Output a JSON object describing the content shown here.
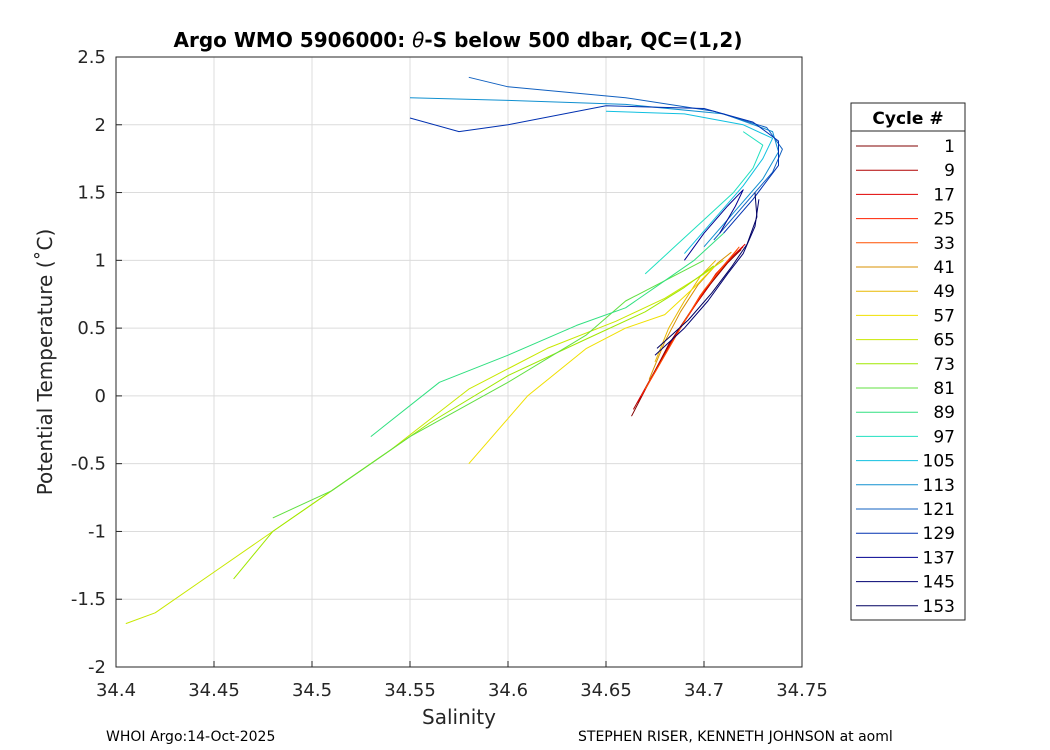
{
  "chart_data": {
    "type": "line",
    "title_prefix": "Argo WMO 5906000: ",
    "title_theta": "θ",
    "title_suffix": "-S below 500 dbar,  QC=(1,2)",
    "xlabel": "Salinity",
    "ylabel": "Potential Temperature (˚C)",
    "xlim": [
      34.4,
      34.75
    ],
    "ylim": [
      -2,
      2.5
    ],
    "xticks": [
      "34.4",
      "34.45",
      "34.5",
      "34.55",
      "34.6",
      "34.65",
      "34.7",
      "34.75"
    ],
    "yticks": [
      "-2",
      "-1.5",
      "-1",
      "-0.5",
      "0",
      "0.5",
      "1",
      "1.5",
      "2",
      "2.5"
    ],
    "grid": true,
    "legend": {
      "title": "Cycle #",
      "placement": "right",
      "entries": [
        "1",
        "9",
        "17",
        "25",
        "33",
        "41",
        "49",
        "57",
        "65",
        "73",
        "81",
        "89",
        "97",
        "105",
        "113",
        "121",
        "129",
        "137",
        "145",
        "153"
      ],
      "colors": [
        "#800000",
        "#b00000",
        "#e00000",
        "#ff2000",
        "#ff5000",
        "#d89000",
        "#e8b800",
        "#f0e000",
        "#c8e800",
        "#a0e800",
        "#60e040",
        "#30e080",
        "#20e0c0",
        "#10c0e0",
        "#1090d0",
        "#1060c0",
        "#0030b0",
        "#000090",
        "#000070",
        "#000060"
      ]
    },
    "series": [
      {
        "values": [
          [
            34.663,
            -0.15
          ],
          [
            34.672,
            0.1
          ],
          [
            34.682,
            0.38
          ],
          [
            34.693,
            0.62
          ],
          [
            34.703,
            0.82
          ],
          [
            34.712,
            0.98
          ],
          [
            34.719,
            1.08
          ]
        ]
      },
      {
        "values": [
          [
            34.664,
            -0.1
          ],
          [
            34.674,
            0.16
          ],
          [
            34.684,
            0.42
          ],
          [
            34.695,
            0.66
          ],
          [
            34.705,
            0.86
          ],
          [
            34.714,
            1.02
          ],
          [
            34.72,
            1.1
          ]
        ]
      },
      {
        "values": [
          [
            34.666,
            -0.05
          ],
          [
            34.676,
            0.2
          ],
          [
            34.686,
            0.46
          ],
          [
            34.697,
            0.7
          ],
          [
            34.706,
            0.9
          ],
          [
            34.716,
            1.05
          ],
          [
            34.721,
            1.12
          ]
        ]
      },
      {
        "values": [
          [
            34.668,
            0.0
          ],
          [
            34.678,
            0.25
          ],
          [
            34.688,
            0.5
          ],
          [
            34.698,
            0.74
          ],
          [
            34.708,
            0.93
          ],
          [
            34.717,
            1.08
          ]
        ]
      },
      {
        "values": [
          [
            34.67,
            0.05
          ],
          [
            34.68,
            0.3
          ],
          [
            34.69,
            0.55
          ],
          [
            34.7,
            0.78
          ],
          [
            34.71,
            0.96
          ],
          [
            34.718,
            1.1
          ]
        ]
      },
      {
        "values": [
          [
            34.672,
            0.12
          ],
          [
            34.68,
            0.4
          ],
          [
            34.688,
            0.62
          ],
          [
            34.697,
            0.82
          ],
          [
            34.707,
            0.98
          ],
          [
            34.714,
            1.06
          ]
        ]
      },
      {
        "values": [
          [
            34.675,
            0.25
          ],
          [
            34.682,
            0.5
          ],
          [
            34.69,
            0.7
          ],
          [
            34.698,
            0.88
          ],
          [
            34.706,
            1.0
          ]
        ]
      },
      {
        "values": [
          [
            34.58,
            -0.5
          ],
          [
            34.61,
            0.0
          ],
          [
            34.64,
            0.35
          ],
          [
            34.66,
            0.5
          ],
          [
            34.68,
            0.6
          ],
          [
            34.695,
            0.8
          ],
          [
            34.705,
            0.95
          ]
        ]
      },
      {
        "values": [
          [
            34.405,
            -1.68
          ],
          [
            34.42,
            -1.6
          ],
          [
            34.45,
            -1.3
          ],
          [
            34.49,
            -0.9
          ],
          [
            34.54,
            -0.4
          ],
          [
            34.58,
            0.05
          ],
          [
            34.62,
            0.35
          ],
          [
            34.655,
            0.55
          ],
          [
            34.68,
            0.72
          ],
          [
            34.7,
            0.9
          ],
          [
            34.71,
            1.0
          ]
        ]
      },
      {
        "values": [
          [
            34.46,
            -1.35
          ],
          [
            34.48,
            -1.0
          ],
          [
            34.52,
            -0.6
          ],
          [
            34.56,
            -0.2
          ],
          [
            34.6,
            0.15
          ],
          [
            34.64,
            0.42
          ],
          [
            34.67,
            0.62
          ],
          [
            34.69,
            0.8
          ],
          [
            34.705,
            0.96
          ]
        ]
      },
      {
        "values": [
          [
            34.48,
            -0.9
          ],
          [
            34.51,
            -0.7
          ],
          [
            34.55,
            -0.3
          ],
          [
            34.6,
            0.1
          ],
          [
            34.64,
            0.45
          ],
          [
            34.66,
            0.7
          ],
          [
            34.68,
            0.85
          ],
          [
            34.7,
            1.0
          ]
        ]
      },
      {
        "values": [
          [
            34.53,
            -0.3
          ],
          [
            34.565,
            0.1
          ],
          [
            34.6,
            0.3
          ],
          [
            34.635,
            0.52
          ],
          [
            34.66,
            0.65
          ],
          [
            34.68,
            0.85
          ],
          [
            34.695,
            1.0
          ],
          [
            34.71,
            1.2
          ]
        ]
      },
      {
        "values": [
          [
            34.67,
            0.9
          ],
          [
            34.685,
            1.1
          ],
          [
            34.7,
            1.3
          ],
          [
            34.715,
            1.5
          ],
          [
            34.725,
            1.68
          ],
          [
            34.73,
            1.85
          ],
          [
            34.72,
            1.95
          ]
        ]
      },
      {
        "values": [
          [
            34.69,
            1.05
          ],
          [
            34.705,
            1.3
          ],
          [
            34.72,
            1.55
          ],
          [
            34.73,
            1.75
          ],
          [
            34.735,
            1.9
          ],
          [
            34.72,
            2.0
          ],
          [
            34.69,
            2.08
          ],
          [
            34.65,
            2.1
          ]
        ]
      },
      {
        "values": [
          [
            34.7,
            1.1
          ],
          [
            34.715,
            1.35
          ],
          [
            34.73,
            1.6
          ],
          [
            34.738,
            1.8
          ],
          [
            34.735,
            1.95
          ],
          [
            34.71,
            2.08
          ],
          [
            34.66,
            2.15
          ],
          [
            34.6,
            2.18
          ],
          [
            34.55,
            2.2
          ]
        ]
      },
      {
        "values": [
          [
            34.705,
            1.15
          ],
          [
            34.72,
            1.4
          ],
          [
            34.735,
            1.65
          ],
          [
            34.74,
            1.82
          ],
          [
            34.732,
            1.98
          ],
          [
            34.705,
            2.1
          ],
          [
            34.66,
            2.2
          ],
          [
            34.6,
            2.28
          ],
          [
            34.58,
            2.35
          ]
        ]
      },
      {
        "values": [
          [
            34.71,
            1.2
          ],
          [
            34.725,
            1.45
          ],
          [
            34.738,
            1.7
          ],
          [
            34.738,
            1.88
          ],
          [
            34.725,
            2.02
          ],
          [
            34.7,
            2.12
          ],
          [
            34.65,
            2.14
          ],
          [
            34.6,
            2.0
          ],
          [
            34.575,
            1.95
          ],
          [
            34.55,
            2.05
          ]
        ]
      },
      {
        "values": [
          [
            34.69,
            1.0
          ],
          [
            34.7,
            1.2
          ],
          [
            34.712,
            1.4
          ],
          [
            34.72,
            1.52
          ],
          [
            34.716,
            1.4
          ],
          [
            34.708,
            1.2
          ]
        ]
      },
      {
        "values": [
          [
            34.675,
            0.3
          ],
          [
            34.69,
            0.5
          ],
          [
            34.702,
            0.7
          ],
          [
            34.712,
            0.9
          ],
          [
            34.72,
            1.05
          ],
          [
            34.726,
            1.25
          ],
          [
            34.728,
            1.45
          ]
        ]
      },
      {
        "values": [
          [
            34.676,
            0.35
          ],
          [
            34.692,
            0.56
          ],
          [
            34.704,
            0.76
          ],
          [
            34.714,
            0.95
          ],
          [
            34.722,
            1.12
          ],
          [
            34.727,
            1.32
          ],
          [
            34.726,
            1.5
          ]
        ]
      }
    ]
  },
  "footer": {
    "left": "WHOI Argo:14-Oct-2025",
    "right": "STEPHEN RISER, KENNETH JOHNSON at aoml"
  }
}
